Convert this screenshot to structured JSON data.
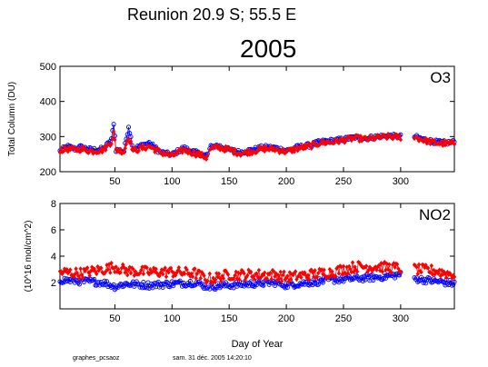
{
  "header": {
    "station": "Reunion  20.9 S; 55.5 E",
    "year": "2005"
  },
  "footer": {
    "program": "graphes_pcsaoz",
    "timestamp": "sam. 31 déc. 2005 14:20:10"
  },
  "colors": {
    "morning": "#0000ff",
    "evening": "#ff0000",
    "axis": "#000000"
  },
  "chart_data": [
    {
      "type": "scatter",
      "title": "O3",
      "ylabel": "Total Column  (DU)",
      "xlabel": "",
      "xlim": [
        2,
        347
      ],
      "ylim": [
        200,
        500
      ],
      "xticks": [
        "50",
        "100",
        "150",
        "200",
        "250",
        "300"
      ],
      "xtick_values": [
        50,
        100,
        150,
        200,
        250,
        300
      ],
      "yticks": [
        "200",
        "300",
        "400",
        "500"
      ],
      "ytick_values": [
        200,
        300,
        400,
        500
      ],
      "gaps": [
        [
          131,
          133
        ],
        [
          300,
          312
        ]
      ],
      "series": [
        {
          "color": "#0000ff",
          "marker": "open-circle",
          "anchors": [
            [
              2,
              258
            ],
            [
              8,
              272
            ],
            [
              15,
              265
            ],
            [
              20,
              270
            ],
            [
              30,
              262
            ],
            [
              40,
              265
            ],
            [
              47,
              290
            ],
            [
              49,
              340
            ],
            [
              51,
              262
            ],
            [
              58,
              258
            ],
            [
              62,
              330
            ],
            [
              66,
              265
            ],
            [
              80,
              282
            ],
            [
              90,
              255
            ],
            [
              100,
              248
            ],
            [
              110,
              268
            ],
            [
              120,
              255
            ],
            [
              125,
              250
            ],
            [
              130,
              245
            ],
            [
              134,
              270
            ],
            [
              140,
              275
            ],
            [
              150,
              262
            ],
            [
              160,
              255
            ],
            [
              170,
              262
            ],
            [
              180,
              270
            ],
            [
              190,
              268
            ],
            [
              200,
              260
            ],
            [
              210,
              270
            ],
            [
              220,
              275
            ],
            [
              230,
              285
            ],
            [
              240,
              288
            ],
            [
              250,
              292
            ],
            [
              260,
              298
            ],
            [
              270,
              295
            ],
            [
              280,
              300
            ],
            [
              290,
              302
            ],
            [
              299,
              300
            ],
            [
              312,
              300
            ],
            [
              320,
              292
            ],
            [
              330,
              285
            ],
            [
              340,
              282
            ],
            [
              347,
              285
            ]
          ],
          "jitter": 6
        },
        {
          "color": "#ff0000",
          "marker": "filled-diamond",
          "anchors": [
            [
              2,
              262
            ],
            [
              8,
              265
            ],
            [
              15,
              262
            ],
            [
              20,
              265
            ],
            [
              30,
              258
            ],
            [
              40,
              262
            ],
            [
              47,
              285
            ],
            [
              49,
              310
            ],
            [
              51,
              262
            ],
            [
              58,
              258
            ],
            [
              62,
              300
            ],
            [
              66,
              260
            ],
            [
              80,
              272
            ],
            [
              90,
              255
            ],
            [
              100,
              245
            ],
            [
              110,
              262
            ],
            [
              120,
              252
            ],
            [
              125,
              248
            ],
            [
              130,
              240
            ],
            [
              134,
              265
            ],
            [
              140,
              270
            ],
            [
              150,
              262
            ],
            [
              160,
              252
            ],
            [
              170,
              258
            ],
            [
              180,
              265
            ],
            [
              190,
              264
            ],
            [
              200,
              257
            ],
            [
              210,
              266
            ],
            [
              220,
              272
            ],
            [
              230,
              282
            ],
            [
              240,
              284
            ],
            [
              250,
              290
            ],
            [
              260,
              296
            ],
            [
              270,
              292
            ],
            [
              280,
              297
            ],
            [
              290,
              300
            ],
            [
              299,
              298
            ],
            [
              312,
              298
            ],
            [
              320,
              290
            ],
            [
              330,
              282
            ],
            [
              340,
              280
            ],
            [
              347,
              280
            ]
          ],
          "jitter": 8
        }
      ]
    },
    {
      "type": "scatter",
      "title": "NO2",
      "ylabel": "(10^16 mol/cm^2)",
      "xlabel": "Day of Year",
      "xlim": [
        2,
        347
      ],
      "ylim": [
        0,
        8
      ],
      "xticks": [
        "50",
        "100",
        "150",
        "200",
        "250",
        "300"
      ],
      "xtick_values": [
        50,
        100,
        150,
        200,
        250,
        300
      ],
      "yticks": [
        "2",
        "4",
        "6",
        "8"
      ],
      "ytick_values": [
        2,
        4,
        6,
        8
      ],
      "gaps": [
        [
          131,
          133
        ],
        [
          300,
          312
        ]
      ],
      "series": [
        {
          "color": "#0000ff",
          "marker": "open-circle",
          "anchors": [
            [
              2,
              2.2
            ],
            [
              20,
              2.1
            ],
            [
              40,
              2.0
            ],
            [
              50,
              1.7
            ],
            [
              60,
              1.9
            ],
            [
              80,
              1.8
            ],
            [
              100,
              1.9
            ],
            [
              120,
              2.0
            ],
            [
              130,
              1.7
            ],
            [
              135,
              1.7
            ],
            [
              150,
              1.8
            ],
            [
              170,
              1.9
            ],
            [
              190,
              2.0
            ],
            [
              200,
              1.8
            ],
            [
              220,
              2.0
            ],
            [
              240,
              2.2
            ],
            [
              260,
              2.3
            ],
            [
              280,
              2.4
            ],
            [
              299,
              2.6
            ],
            [
              312,
              2.3
            ],
            [
              330,
              2.1
            ],
            [
              340,
              2.0
            ],
            [
              347,
              1.9
            ]
          ],
          "jitter": 0.25
        },
        {
          "color": "#ff0000",
          "marker": "filled-diamond",
          "anchors": [
            [
              2,
              2.8
            ],
            [
              20,
              2.7
            ],
            [
              40,
              3.0
            ],
            [
              50,
              3.2
            ],
            [
              60,
              2.9
            ],
            [
              80,
              2.8
            ],
            [
              100,
              2.8
            ],
            [
              120,
              2.7
            ],
            [
              130,
              2.3
            ],
            [
              135,
              2.3
            ],
            [
              150,
              2.6
            ],
            [
              170,
              2.6
            ],
            [
              190,
              2.6
            ],
            [
              200,
              2.4
            ],
            [
              220,
              2.6
            ],
            [
              240,
              2.8
            ],
            [
              260,
              3.2
            ],
            [
              280,
              3.2
            ],
            [
              299,
              3.1
            ],
            [
              312,
              3.0
            ],
            [
              330,
              2.9
            ],
            [
              340,
              2.7
            ],
            [
              347,
              2.6
            ]
          ],
          "jitter": 0.4
        }
      ]
    }
  ]
}
